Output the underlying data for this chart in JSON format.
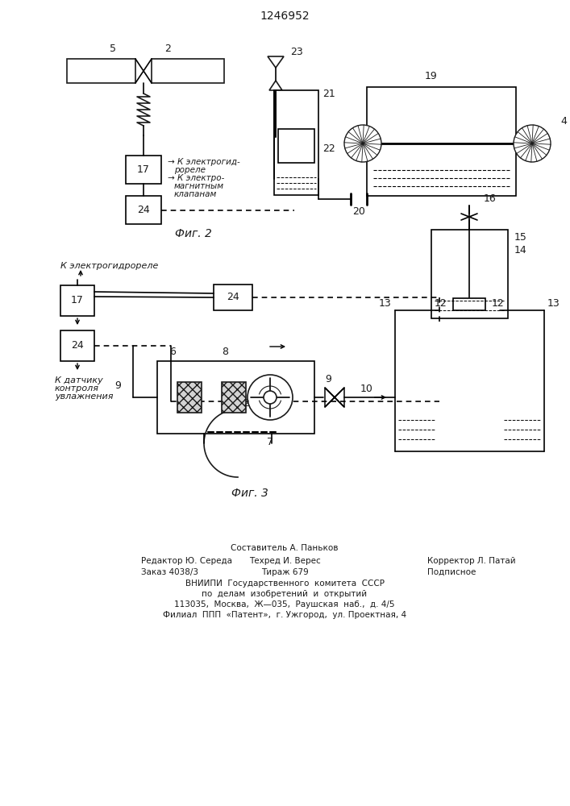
{
  "title": "1246952",
  "fig2_label": "Фиг. 2",
  "fig3_label": "Фиг. 3",
  "text_to_electro_fig2_line1": "К электрогид-",
  "text_to_electro_fig2_line2": "рореле",
  "text_elektro2_line1": "К электро-",
  "text_elektro2_line2": "магнитным",
  "text_elektro2_line3": "клапанам",
  "text_to_electro_fig3": "К электрогидрореле",
  "text_to_sensor_line1": "К датчику",
  "text_to_sensor_line2": "контроля",
  "text_to_sensor_line3": "увлажнения",
  "footer_col1_line1": "Редактор Ю. Середа",
  "footer_col1_line2": "Заказ 4038/3",
  "footer_col2_line1": "Составитель А. Паньков",
  "footer_col2_line2": "Техред И. Верес",
  "footer_col2_line3": "Тираж 679",
  "footer_col3_line1": "Корректор Л. Патай",
  "footer_col3_line2": "Подписное",
  "footer_line4": "ВНИИПИ  Государственного  комитета  СССР",
  "footer_line5": "по  делам  изобретений  и  открытий",
  "footer_line6": "113035,  Москва,  Ж—035,  Раушская  наб.,  д. 4/5",
  "footer_line7": "Филиал  ППП  «Патент»,  г. Ужгород,  ул. Проектная, 4",
  "bg_color": "#ffffff",
  "line_color": "#1a1a1a"
}
